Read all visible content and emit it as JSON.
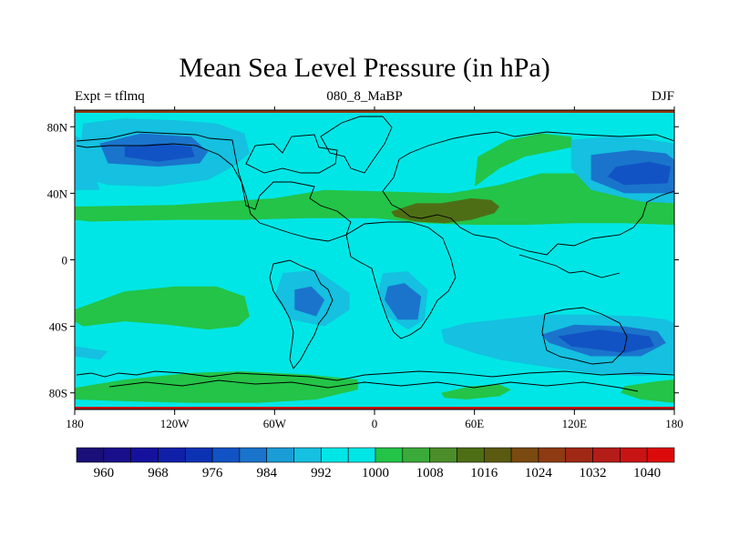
{
  "chart_data": {
    "type": "heatmap",
    "title": "Mean Sea Level Pressure (in hPa)",
    "left_string": "Expt = tflmq",
    "center_string": "080_8_MaBP",
    "right_string": "DJF",
    "x_ticks": [
      {
        "lon": -180,
        "label": "180"
      },
      {
        "lon": -120,
        "label": "120W"
      },
      {
        "lon": -60,
        "label": "60W"
      },
      {
        "lon": 0,
        "label": "0"
      },
      {
        "lon": 60,
        "label": "60E"
      },
      {
        "lon": 120,
        "label": "120E"
      },
      {
        "lon": 180,
        "label": "180"
      }
    ],
    "y_ticks": [
      {
        "lat": 80,
        "label": "80N"
      },
      {
        "lat": 40,
        "label": "40N"
      },
      {
        "lat": 0,
        "label": "0"
      },
      {
        "lat": -40,
        "label": "40S"
      },
      {
        "lat": -80,
        "label": "80S"
      }
    ],
    "xlim": [
      -180,
      180
    ],
    "ylim": [
      -90,
      90
    ],
    "colorbar": {
      "colors": [
        "#1a0f78",
        "#190f8a",
        "#15119c",
        "#0f1fa8",
        "#0c32b4",
        "#1153c4",
        "#1a74cc",
        "#1a9cd6",
        "#15c0e0",
        "#00e6e6",
        "#00e6e6",
        "#23c447",
        "#3aab3a",
        "#4b8d28",
        "#4e6e16",
        "#5b5a10",
        "#7a4a10",
        "#8e3a12",
        "#a02815",
        "#b41c18",
        "#c81414",
        "#dc0a0a"
      ],
      "labels": [
        "960",
        "968",
        "976",
        "984",
        "992",
        "1000",
        "1008",
        "1016",
        "1024",
        "1032",
        "1040"
      ]
    },
    "regions": [
      {
        "level": "ocean",
        "color": "#00e6e6",
        "lon": [
          -180,
          180,
          180,
          -180
        ],
        "lat": [
          90,
          90,
          -90,
          -90
        ]
      },
      {
        "level": "1008",
        "color": "#23c447",
        "lon": [
          -180,
          -120,
          -60,
          -30,
          10,
          45,
          75,
          100,
          135,
          165,
          180,
          180,
          150,
          120,
          90,
          60,
          30,
          0,
          -40,
          -80,
          -120,
          -170,
          -180
        ],
        "lat": [
          32,
          33,
          37,
          42,
          41,
          40,
          45,
          52,
          52,
          48,
          46,
          21,
          22,
          22,
          21,
          21,
          22,
          25,
          25,
          24,
          24,
          23,
          24
        ]
      },
      {
        "level": "1008",
        "color": "#23c447",
        "lon": [
          60,
          75,
          90,
          110,
          120,
          118,
          100,
          80,
          62
        ],
        "lat": [
          44,
          55,
          62,
          66,
          68,
          74,
          76,
          72,
          62
        ]
      },
      {
        "level": "1008",
        "color": "#23c447",
        "lon": [
          -180,
          -150,
          -120,
          -95,
          -78,
          -75,
          -82,
          -100,
          -125,
          -150,
          -175,
          -180
        ],
        "lat": [
          -30,
          -19,
          -16,
          -16,
          -22,
          -34,
          -40,
          -42,
          -39,
          -37,
          -40,
          -37
        ]
      },
      {
        "level": "1008",
        "color": "#23c447",
        "lon": [
          -180,
          -150,
          -110,
          -80,
          -40,
          -10,
          -10,
          -35,
          -70,
          -110,
          -150,
          -180
        ],
        "lat": [
          -77,
          -72,
          -68,
          -67,
          -69,
          -72,
          -78,
          -84,
          -86,
          -86,
          -85,
          -84
        ]
      },
      {
        "level": "1008",
        "color": "#23c447",
        "lon": [
          40,
          58,
          75,
          82,
          75,
          55,
          42
        ],
        "lat": [
          -80,
          -76,
          -75,
          -78,
          -82,
          -84,
          -83
        ]
      },
      {
        "level": "1008",
        "color": "#23c447",
        "lon": [
          150,
          170,
          180,
          180,
          160,
          148
        ],
        "lat": [
          -76,
          -73,
          -72,
          -86,
          -84,
          -80
        ]
      },
      {
        "level": "1016",
        "color": "#4e6e16",
        "lon": [
          10,
          25,
          40,
          58,
          70,
          75,
          72,
          58,
          42,
          25,
          12
        ],
        "lat": [
          29,
          34,
          34,
          37,
          36,
          32,
          28,
          24,
          22,
          23,
          26
        ]
      },
      {
        "level": "992",
        "color": "#15c0e0",
        "lon": [
          -175,
          -150,
          -120,
          -95,
          -78,
          -75,
          -85,
          -100,
          -130,
          -160,
          -178
        ],
        "lat": [
          82,
          85,
          84,
          82,
          76,
          64,
          56,
          48,
          44,
          45,
          50
        ]
      },
      {
        "level": "992",
        "color": "#15c0e0",
        "lon": [
          118,
          140,
          160,
          180,
          180,
          160,
          130,
          118
        ],
        "lat": [
          72,
          74,
          73,
          70,
          34,
          35,
          42,
          55
        ]
      },
      {
        "level": "992",
        "color": "#15c0e0",
        "lon": [
          -180,
          -175,
          -165,
          -180
        ],
        "lat": [
          75,
          72,
          42,
          42
        ]
      },
      {
        "level": "992",
        "color": "#15c0e0",
        "lon": [
          -55,
          -35,
          -15,
          -15,
          -30,
          -50,
          -60
        ],
        "lat": [
          -8,
          -6,
          -20,
          -30,
          -40,
          -36,
          -22
        ]
      },
      {
        "level": "992",
        "color": "#15c0e0",
        "lon": [
          5,
          20,
          32,
          30,
          20,
          8,
          2
        ],
        "lat": [
          -8,
          -7,
          -18,
          -36,
          -42,
          -34,
          -20
        ]
      },
      {
        "level": "992",
        "color": "#15c0e0",
        "lon": [
          40,
          55,
          75,
          100,
          130,
          160,
          175,
          180,
          180,
          160,
          130,
          100,
          75,
          60,
          42
        ],
        "lat": [
          -42,
          -38,
          -36,
          -33,
          -33,
          -34,
          -36,
          -38,
          -68,
          -70,
          -68,
          -64,
          -60,
          -56,
          -50
        ]
      },
      {
        "level": "992",
        "color": "#15c0e0",
        "lon": [
          -180,
          -160,
          -165,
          -180
        ],
        "lat": [
          -52,
          -55,
          -60,
          -58
        ]
      },
      {
        "level": "984",
        "color": "#1a74cc",
        "lon": [
          -165,
          -140,
          -110,
          -100,
          -105,
          -130,
          -160
        ],
        "lat": [
          70,
          76,
          74,
          65,
          58,
          56,
          58
        ]
      },
      {
        "level": "984",
        "color": "#1a74cc",
        "lon": [
          130,
          155,
          175,
          180,
          180,
          150,
          130
        ],
        "lat": [
          63,
          66,
          64,
          60,
          40,
          40,
          48
        ]
      },
      {
        "level": "984",
        "color": "#1a74cc",
        "lon": [
          -48,
          -38,
          -30,
          -35,
          -48
        ],
        "lat": [
          -18,
          -16,
          -24,
          -34,
          -30
        ]
      },
      {
        "level": "984",
        "color": "#1a74cc",
        "lon": [
          8,
          18,
          28,
          26,
          14,
          6
        ],
        "lat": [
          -16,
          -14,
          -22,
          -36,
          -36,
          -24
        ]
      },
      {
        "level": "984",
        "color": "#1a74cc",
        "lon": [
          100,
          120,
          150,
          170,
          175,
          160,
          130,
          105
        ],
        "lat": [
          -45,
          -39,
          -40,
          -43,
          -50,
          -58,
          -58,
          -50
        ]
      },
      {
        "level": "976",
        "color": "#1153c4",
        "lon": [
          -150,
          -130,
          -110,
          -108,
          -130,
          -150
        ],
        "lat": [
          68,
          70,
          68,
          62,
          59,
          62
        ]
      },
      {
        "level": "976",
        "color": "#1153c4",
        "lon": [
          145,
          165,
          178,
          176,
          150,
          140
        ],
        "lat": [
          56,
          59,
          56,
          46,
          45,
          50
        ]
      },
      {
        "level": "976",
        "color": "#1153c4",
        "lon": [
          110,
          135,
          165,
          168,
          150,
          118
        ],
        "lat": [
          -46,
          -42,
          -46,
          -52,
          -56,
          -52
        ]
      }
    ]
  }
}
